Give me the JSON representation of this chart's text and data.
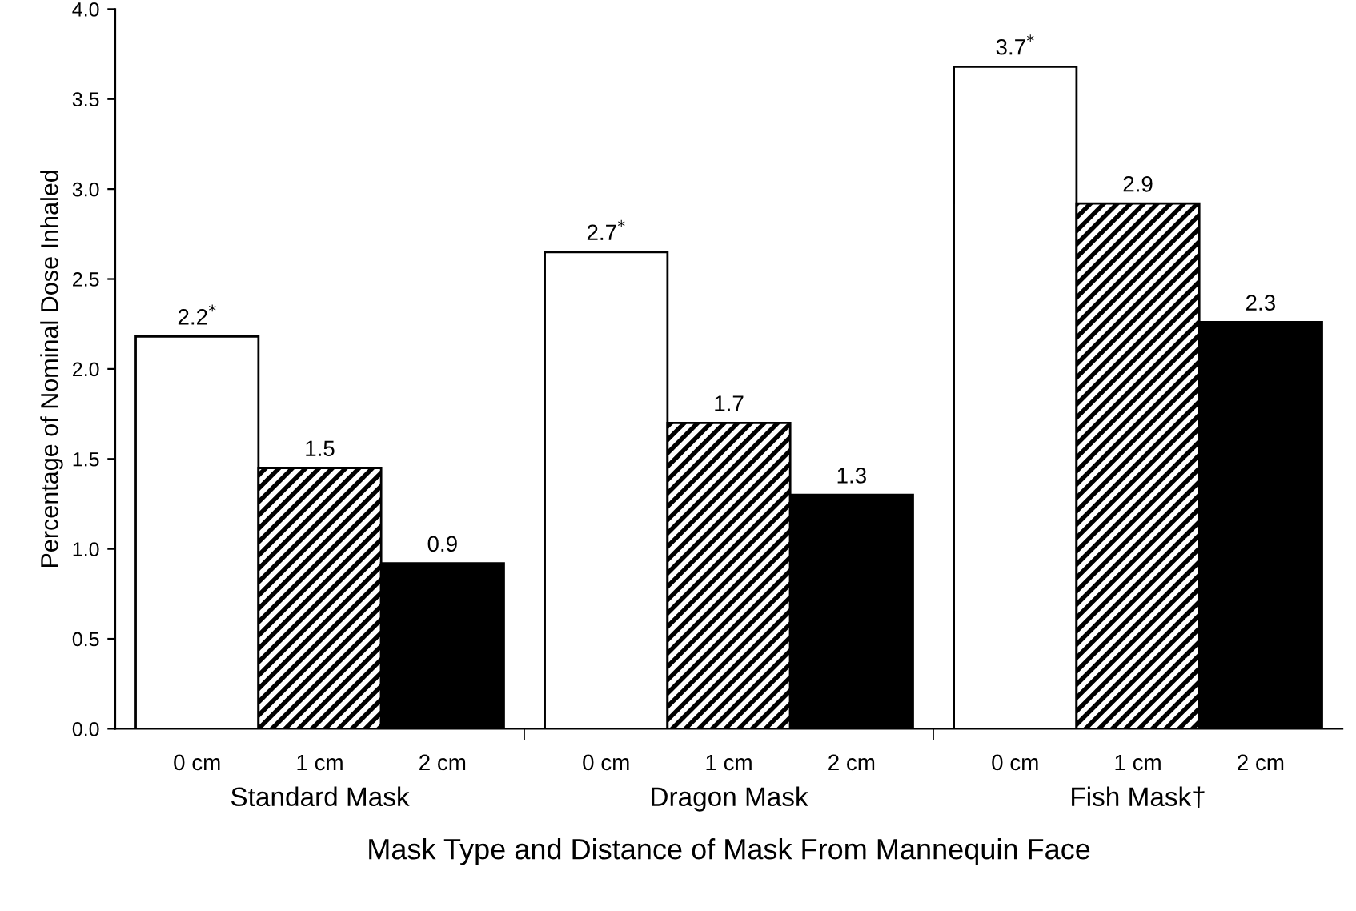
{
  "chart_data": {
    "type": "bar",
    "xlabel": "Mask Type and Distance of Mask From Mannequin Face",
    "ylabel": "Percentage of Nominal Dose Inhaled",
    "categories": [
      "Standard Mask",
      "Dragon Mask",
      "Fish Mask†"
    ],
    "series": [
      {
        "name": "0 cm",
        "color": "#ffffff",
        "values": [
          2.18,
          2.65,
          3.68
        ],
        "value_labels": [
          "2.2$^{*}$",
          "2.7$^{*}$",
          "3.7$^{*}$"
        ]
      },
      {
        "name": "1 cm",
        "color": "#000000",
        "values": [
          1.45,
          1.7,
          2.92
        ],
        "value_labels": [
          "1.5",
          "1.7",
          "2.9"
        ]
      },
      {
        "name": "2 cm",
        "color": "#000000",
        "values": [
          0.92,
          1.3,
          2.26
        ],
        "value_labels": [
          "0.9",
          "1.3",
          "2.3"
        ]
      }
    ],
    "ylim": [
      0,
      4
    ],
    "yticks": [
      {
        "value": 0,
        "label": "0.0"
      },
      {
        "value": 0.5,
        "label": "0.5"
      },
      {
        "value": 1,
        "label": "1.0"
      },
      {
        "value": 1.5,
        "label": "1.5"
      },
      {
        "value": 2,
        "label": "2.0"
      },
      {
        "value": 2.5,
        "label": "2.5"
      },
      {
        "value": 3,
        "label": "3.0"
      },
      {
        "value": 3.5,
        "label": "3.5"
      },
      {
        "value": 4,
        "label": "4.0"
      }
    ],
    "grid": false,
    "legend": false
  }
}
